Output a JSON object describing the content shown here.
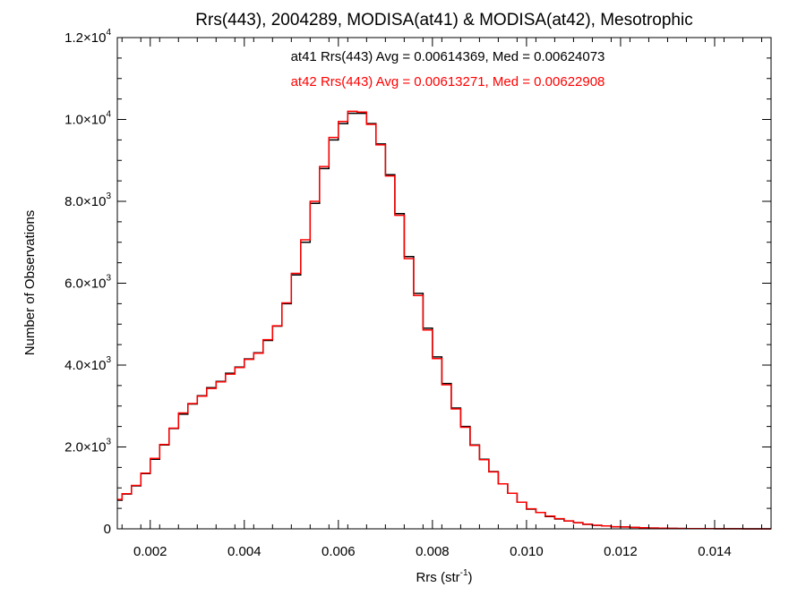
{
  "chart_data": {
    "type": "line",
    "title": "Rrs(443), 2004289, MODISA(at41) & MODISA(at42), Mesotrophic",
    "xlabel_base": "Rrs (str",
    "xlabel_sup": "-1",
    "xlabel_tail": ")",
    "ylabel": "Number of Observations",
    "xlim": [
      0.0013,
      0.0152
    ],
    "ylim": [
      0,
      12000
    ],
    "x_ticks": [
      0.002,
      0.004,
      0.006,
      0.008,
      0.01,
      0.012,
      0.014
    ],
    "x_tick_labels": [
      "0.002",
      "0.004",
      "0.006",
      "0.008",
      "0.010",
      "0.012",
      "0.014"
    ],
    "y_ticks": [
      {
        "value": 0,
        "mantissa": "0",
        "exponent": ""
      },
      {
        "value": 2000,
        "mantissa": "2.0×10",
        "exponent": "3"
      },
      {
        "value": 4000,
        "mantissa": "4.0×10",
        "exponent": "3"
      },
      {
        "value": 6000,
        "mantissa": "6.0×10",
        "exponent": "3"
      },
      {
        "value": 8000,
        "mantissa": "8.0×10",
        "exponent": "3"
      },
      {
        "value": 10000,
        "mantissa": "1.0×10",
        "exponent": "4"
      },
      {
        "value": 12000,
        "mantissa": "1.2×10",
        "exponent": "4"
      }
    ],
    "annotations": [
      {
        "text": "at41 Rrs(443) Avg = 0.00614369, Med = 0.00624073",
        "color": "#000000"
      },
      {
        "text": "at42 Rrs(443) Avg = 0.00613271, Med = 0.00622908",
        "color": "#ff0000"
      }
    ],
    "series": [
      {
        "color": "#000000",
        "x": [
          0.0013,
          0.0015,
          0.0017,
          0.0019,
          0.0021,
          0.0023,
          0.0025,
          0.0027,
          0.0029,
          0.0031,
          0.0033,
          0.0035,
          0.0037,
          0.0039,
          0.0041,
          0.0043,
          0.0045,
          0.0047,
          0.0049,
          0.0051,
          0.0053,
          0.0055,
          0.0057,
          0.0059,
          0.0061,
          0.0063,
          0.0065,
          0.0067,
          0.0069,
          0.0071,
          0.0073,
          0.0075,
          0.0077,
          0.0079,
          0.0081,
          0.0083,
          0.0085,
          0.0087,
          0.0089,
          0.0091,
          0.0093,
          0.0095,
          0.0097,
          0.0099,
          0.0101,
          0.0103,
          0.0105,
          0.0107,
          0.0109,
          0.0111,
          0.0113,
          0.0115,
          0.0117,
          0.0119,
          0.0121,
          0.0123,
          0.0125,
          0.0127,
          0.0129,
          0.0131,
          0.0133,
          0.0135,
          0.0137,
          0.0139,
          0.0141,
          0.0143,
          0.0145,
          0.0147,
          0.0149,
          0.0151
        ],
        "values": [
          700,
          850,
          1050,
          1350,
          1700,
          2050,
          2450,
          2800,
          3050,
          3250,
          3450,
          3600,
          3800,
          3950,
          4150,
          4300,
          4600,
          4950,
          5500,
          6200,
          7000,
          7950,
          8800,
          9500,
          9900,
          10150,
          10150,
          9900,
          9400,
          8650,
          7700,
          6650,
          5750,
          4900,
          4200,
          3550,
          2950,
          2500,
          2050,
          1700,
          1400,
          1100,
          870,
          650,
          480,
          400,
          300,
          240,
          190,
          150,
          110,
          85,
          70,
          50,
          45,
          35,
          25,
          20,
          15,
          10,
          8,
          6,
          5,
          4,
          3,
          2,
          2,
          1,
          1,
          1
        ]
      },
      {
        "color": "#ff0000",
        "x": [
          0.0013,
          0.0015,
          0.0017,
          0.0019,
          0.0021,
          0.0023,
          0.0025,
          0.0027,
          0.0029,
          0.0031,
          0.0033,
          0.0035,
          0.0037,
          0.0039,
          0.0041,
          0.0043,
          0.0045,
          0.0047,
          0.0049,
          0.0051,
          0.0053,
          0.0055,
          0.0057,
          0.0059,
          0.0061,
          0.0063,
          0.0065,
          0.0067,
          0.0069,
          0.0071,
          0.0073,
          0.0075,
          0.0077,
          0.0079,
          0.0081,
          0.0083,
          0.0085,
          0.0087,
          0.0089,
          0.0091,
          0.0093,
          0.0095,
          0.0097,
          0.0099,
          0.0101,
          0.0103,
          0.0105,
          0.0107,
          0.0109,
          0.0111,
          0.0113,
          0.0115,
          0.0117,
          0.0119,
          0.0121,
          0.0123,
          0.0125,
          0.0127,
          0.0129,
          0.0131,
          0.0133,
          0.0135,
          0.0137,
          0.0139,
          0.0141,
          0.0143,
          0.0145,
          0.0147,
          0.0149,
          0.0151
        ],
        "values": [
          720,
          860,
          1060,
          1360,
          1720,
          2060,
          2460,
          2830,
          3060,
          3240,
          3430,
          3590,
          3780,
          3940,
          4140,
          4290,
          4620,
          4960,
          5520,
          6240,
          7060,
          8000,
          8850,
          9560,
          9950,
          10200,
          10180,
          9880,
          9380,
          8620,
          7660,
          6600,
          5700,
          4860,
          4160,
          3520,
          2930,
          2480,
          2040,
          1690,
          1390,
          1100,
          870,
          650,
          490,
          400,
          310,
          250,
          195,
          150,
          115,
          88,
          72,
          52,
          46,
          36,
          26,
          20,
          15,
          10,
          8,
          6,
          5,
          4,
          3,
          2,
          2,
          1,
          1,
          1
        ]
      }
    ]
  }
}
